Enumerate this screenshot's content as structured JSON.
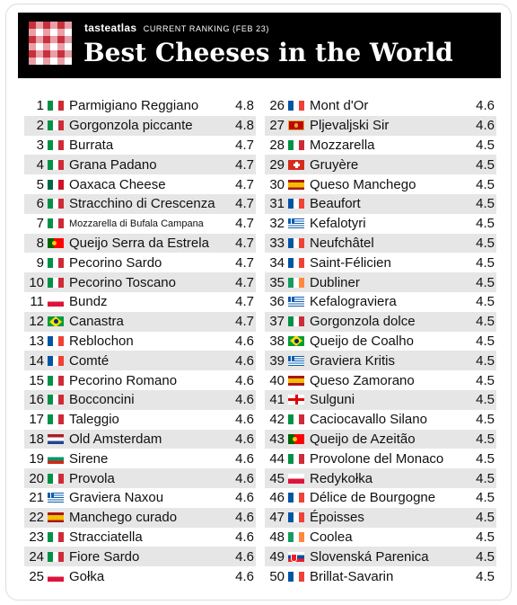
{
  "header": {
    "brand": "tasteatlas",
    "subtitle": "CURRENT RANKING (FEB 23)",
    "title": "Best Cheeses in the World",
    "logo_icon": "red-checkered-tablecloth-icon"
  },
  "rankings_left": [
    {
      "rank": "1",
      "flag": "it",
      "name": "Parmigiano Reggiano",
      "score": "4.8"
    },
    {
      "rank": "2",
      "flag": "it",
      "name": "Gorgonzola piccante",
      "score": "4.8"
    },
    {
      "rank": "3",
      "flag": "it",
      "name": "Burrata",
      "score": "4.7"
    },
    {
      "rank": "4",
      "flag": "it",
      "name": "Grana Padano",
      "score": "4.7"
    },
    {
      "rank": "5",
      "flag": "mx",
      "name": "Oaxaca Cheese",
      "score": "4.7"
    },
    {
      "rank": "6",
      "flag": "it",
      "name": "Stracchino di Crescenza",
      "score": "4.7"
    },
    {
      "rank": "7",
      "flag": "it",
      "name": "Mozzarella di Bufala Campana",
      "score": "4.7"
    },
    {
      "rank": "8",
      "flag": "pt",
      "name": "Queijo Serra da Estrela",
      "score": "4.7"
    },
    {
      "rank": "9",
      "flag": "it",
      "name": "Pecorino Sardo",
      "score": "4.7"
    },
    {
      "rank": "10",
      "flag": "it",
      "name": "Pecorino Toscano",
      "score": "4.7"
    },
    {
      "rank": "11",
      "flag": "pl",
      "name": "Bundz",
      "score": "4.7"
    },
    {
      "rank": "12",
      "flag": "br",
      "name": "Canastra",
      "score": "4.7"
    },
    {
      "rank": "13",
      "flag": "fr",
      "name": "Reblochon",
      "score": "4.6"
    },
    {
      "rank": "14",
      "flag": "fr",
      "name": "Comté",
      "score": "4.6"
    },
    {
      "rank": "15",
      "flag": "it",
      "name": "Pecorino Romano",
      "score": "4.6"
    },
    {
      "rank": "16",
      "flag": "it",
      "name": "Bocconcini",
      "score": "4.6"
    },
    {
      "rank": "17",
      "flag": "it",
      "name": "Taleggio",
      "score": "4.6"
    },
    {
      "rank": "18",
      "flag": "nl",
      "name": "Old Amsterdam",
      "score": "4.6"
    },
    {
      "rank": "19",
      "flag": "bg",
      "name": "Sirene",
      "score": "4.6"
    },
    {
      "rank": "20",
      "flag": "it",
      "name": "Provola",
      "score": "4.6"
    },
    {
      "rank": "21",
      "flag": "gr",
      "name": "Graviera Naxou",
      "score": "4.6"
    },
    {
      "rank": "22",
      "flag": "es",
      "name": "Manchego curado",
      "score": "4.6"
    },
    {
      "rank": "23",
      "flag": "it",
      "name": "Stracciatella",
      "score": "4.6"
    },
    {
      "rank": "24",
      "flag": "it",
      "name": "Fiore Sardo",
      "score": "4.6"
    },
    {
      "rank": "25",
      "flag": "pl",
      "name": "Gołka",
      "score": "4.6"
    }
  ],
  "rankings_right": [
    {
      "rank": "26",
      "flag": "fr",
      "name": "Mont d'Or",
      "score": "4.6"
    },
    {
      "rank": "27",
      "flag": "me",
      "name": "Pljevaljski Sir",
      "score": "4.6"
    },
    {
      "rank": "28",
      "flag": "it",
      "name": "Mozzarella",
      "score": "4.5"
    },
    {
      "rank": "29",
      "flag": "ch",
      "name": "Gruyère",
      "score": "4.5"
    },
    {
      "rank": "30",
      "flag": "es",
      "name": "Queso Manchego",
      "score": "4.5"
    },
    {
      "rank": "31",
      "flag": "fr",
      "name": "Beaufort",
      "score": "4.5"
    },
    {
      "rank": "32",
      "flag": "gr",
      "name": "Kefalotyri",
      "score": "4.5"
    },
    {
      "rank": "33",
      "flag": "fr",
      "name": "Neufchâtel",
      "score": "4.5"
    },
    {
      "rank": "34",
      "flag": "fr",
      "name": "Saint-Félicien",
      "score": "4.5"
    },
    {
      "rank": "35",
      "flag": "ie",
      "name": "Dubliner",
      "score": "4.5"
    },
    {
      "rank": "36",
      "flag": "gr",
      "name": "Kefalograviera",
      "score": "4.5"
    },
    {
      "rank": "37",
      "flag": "it",
      "name": "Gorgonzola dolce",
      "score": "4.5"
    },
    {
      "rank": "38",
      "flag": "br",
      "name": "Queijo de Coalho",
      "score": "4.5"
    },
    {
      "rank": "39",
      "flag": "gr",
      "name": "Graviera Kritis",
      "score": "4.5"
    },
    {
      "rank": "40",
      "flag": "es",
      "name": "Queso Zamorano",
      "score": "4.5"
    },
    {
      "rank": "41",
      "flag": "ge",
      "name": "Sulguni",
      "score": "4.5"
    },
    {
      "rank": "42",
      "flag": "it",
      "name": "Caciocavallo Silano",
      "score": "4.5"
    },
    {
      "rank": "43",
      "flag": "pt",
      "name": "Queijo de Azeitão",
      "score": "4.5"
    },
    {
      "rank": "44",
      "flag": "it",
      "name": "Provolone del Monaco",
      "score": "4.5"
    },
    {
      "rank": "45",
      "flag": "pl",
      "name": "Redykołka",
      "score": "4.5"
    },
    {
      "rank": "46",
      "flag": "fr",
      "name": "Délice de Bourgogne",
      "score": "4.5"
    },
    {
      "rank": "47",
      "flag": "fr",
      "name": "Époisses",
      "score": "4.5"
    },
    {
      "rank": "48",
      "flag": "ie",
      "name": "Coolea",
      "score": "4.5"
    },
    {
      "rank": "49",
      "flag": "sk",
      "name": "Slovenská Parenica",
      "score": "4.5"
    },
    {
      "rank": "50",
      "flag": "fr",
      "name": "Brillat-Savarin",
      "score": "4.5"
    }
  ]
}
